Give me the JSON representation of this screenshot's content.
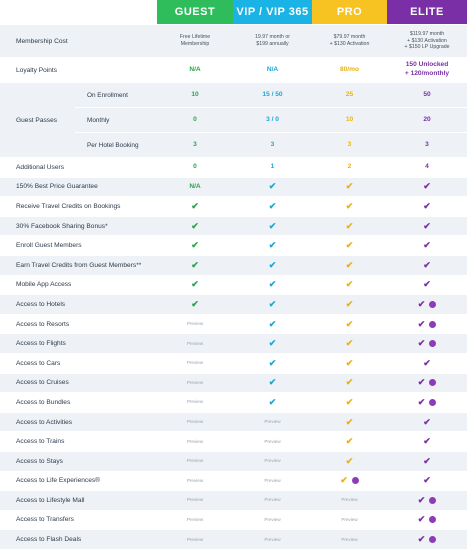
{
  "tiers": [
    {
      "name": "GUEST",
      "color": "#2fbd5b"
    },
    {
      "name": "VIP / VIP 365",
      "color": "#1ab3e6"
    },
    {
      "name": "PRO",
      "color": "#f6c322"
    },
    {
      "name": "ELITE",
      "color": "#7b2fa6"
    }
  ],
  "rows": {
    "membership_cost": {
      "label": "Membership Cost",
      "values": [
        "Free Lifetime\nMembership",
        "19.97 month or\n$199 annually",
        "$79.97 month\n+ $130 Activation",
        "$119.97 month\n+ $130 Activation\n+ $150 LP Upgrade"
      ]
    },
    "loyalty_points": {
      "label": "Loyalty Points",
      "values": [
        "N/A",
        "N/A",
        "80/mo",
        "150 Unlocked\n+ 120/monthly"
      ]
    },
    "guest_passes": {
      "label": "Guest Passes",
      "sub": [
        {
          "label": "On Enrollment",
          "values": [
            "10",
            "15 / 50",
            "25",
            "50"
          ]
        },
        {
          "label": "Monthly",
          "values": [
            "0",
            "3 / 0",
            "10",
            "20"
          ]
        },
        {
          "label": "Per Hotel Booking",
          "values": [
            "3",
            "3",
            "3",
            "3"
          ]
        }
      ]
    },
    "additional_users": {
      "label": "Additional Users",
      "values": [
        "0",
        "1",
        "2",
        "4"
      ]
    },
    "best_price": {
      "label": "150% Best Price Guarantee",
      "values": [
        "N/A",
        "check",
        "check",
        "check"
      ]
    },
    "travel_credits": {
      "label": "Receive Travel Credits on Bookings",
      "values": [
        "check",
        "check",
        "check",
        "check"
      ]
    },
    "facebook": {
      "label": "30% Facebook Sharing Bonus*",
      "values": [
        "check",
        "check",
        "check",
        "check"
      ]
    },
    "enroll_guest": {
      "label": "Enroll Guest Members",
      "values": [
        "check",
        "check",
        "check",
        "check"
      ]
    },
    "earn_credits": {
      "label": "Earn Travel Credits from Guest Members**",
      "values": [
        "check",
        "check",
        "check",
        "check"
      ]
    },
    "mobile_app": {
      "label": "Mobile App Access",
      "values": [
        "check",
        "check",
        "check",
        "check"
      ]
    },
    "hotels": {
      "label": "Access to Hotels",
      "values": [
        "check",
        "check",
        "check",
        "check-dot"
      ]
    },
    "resorts": {
      "label": "Access to Resorts",
      "values": [
        "Preview",
        "check",
        "check",
        "check-dot"
      ]
    },
    "flights": {
      "label": "Access to Flights",
      "values": [
        "Preview",
        "check",
        "check",
        "check-dot"
      ]
    },
    "cars": {
      "label": "Access to Cars",
      "values": [
        "Preview",
        "check",
        "check",
        "check"
      ]
    },
    "cruises": {
      "label": "Access to Cruises",
      "values": [
        "Preview",
        "check",
        "check",
        "check-dot"
      ]
    },
    "bundles": {
      "label": "Access to Bundles",
      "values": [
        "Preview",
        "check",
        "check",
        "check-dot"
      ]
    },
    "activities": {
      "label": "Access to Activities",
      "values": [
        "Preview",
        "Preview",
        "check",
        "check"
      ]
    },
    "trains": {
      "label": "Access to Trains",
      "values": [
        "Preview",
        "Preview",
        "check",
        "check"
      ]
    },
    "stays": {
      "label": "Access to Stays",
      "values": [
        "Preview",
        "Preview",
        "check",
        "check"
      ]
    },
    "life_exp": {
      "label": "Access to Life Experiences®",
      "values": [
        "Preview",
        "Preview",
        "check-dot",
        "check"
      ]
    },
    "mall": {
      "label": "Access to Lifestyle Mall",
      "values": [
        "Preview",
        "Preview",
        "Preview",
        "check-dot"
      ]
    },
    "transfers": {
      "label": "Access to Transfers",
      "values": [
        "Preview",
        "Preview",
        "Preview",
        "check-dot"
      ]
    },
    "flash": {
      "label": "Access to Flash Deals",
      "values": [
        "Preview",
        "Preview",
        "Preview",
        "check-dot"
      ]
    }
  },
  "check_glyph": "✔"
}
